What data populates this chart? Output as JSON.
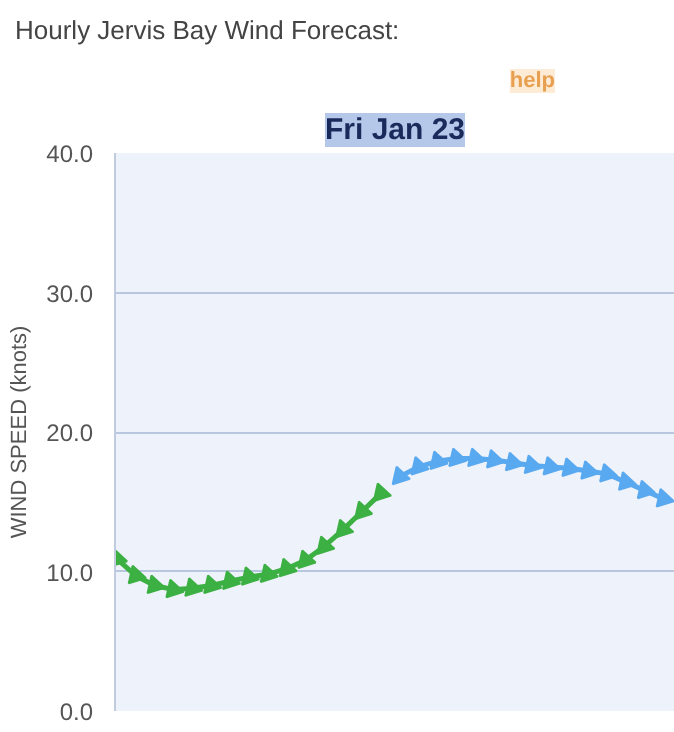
{
  "chart_data": {
    "type": "line",
    "title": "Hourly Jervis Bay Wind Forecast:",
    "annotations": [
      "help",
      "Fri Jan 23"
    ],
    "ylabel": "WIND SPEED (knots)",
    "ylim": [
      0,
      40
    ],
    "yticks": [
      {
        "value": 0,
        "label": "0.0"
      },
      {
        "value": 10,
        "label": "10.0"
      },
      {
        "value": 20,
        "label": "20.0"
      },
      {
        "value": 30,
        "label": "30.0"
      },
      {
        "value": 40,
        "label": "40.0"
      }
    ],
    "categories": [
      null,
      null,
      null,
      null,
      null,
      null,
      null,
      null,
      null,
      null,
      null,
      null,
      null,
      null,
      null,
      null,
      null,
      null,
      null,
      null,
      null,
      null,
      null,
      null,
      null,
      null,
      null,
      null,
      null,
      null
    ],
    "grid": "y",
    "marker": "triangle",
    "series": [
      {
        "color": "#3cb043",
        "values": [
          10.9,
          9.7,
          9.0,
          8.7,
          8.8,
          9.0,
          9.3,
          9.6,
          9.8,
          10.2,
          10.8,
          11.8,
          13.0,
          14.3,
          15.6,
          null,
          null,
          null,
          null,
          null,
          null,
          null,
          null,
          null,
          null,
          null,
          null,
          null,
          null,
          null
        ]
      },
      {
        "color": "#59a9f0",
        "values": [
          null,
          null,
          null,
          null,
          null,
          null,
          null,
          null,
          null,
          null,
          null,
          null,
          null,
          null,
          null,
          16.8,
          17.5,
          17.9,
          18.1,
          18.1,
          18.0,
          17.8,
          17.6,
          17.5,
          17.4,
          17.2,
          17.0,
          16.4,
          15.8,
          15.2
        ]
      }
    ]
  }
}
